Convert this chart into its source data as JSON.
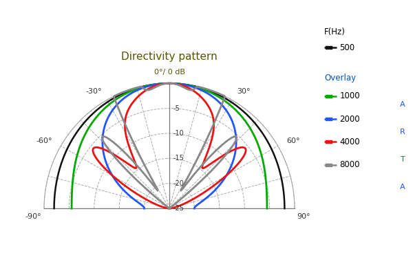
{
  "title": "Directivity pattern",
  "title_color": "#555500",
  "db_label": "0°/ 0 dB",
  "db_label_color": "#555500",
  "db_ticks": [
    -5,
    -10,
    -15,
    -20,
    -25
  ],
  "angle_labels": {
    "-90": "-90°",
    "-60": "-60°",
    "-30": "-30°",
    "30": "30°",
    "60": "60°",
    "90": "90°"
  },
  "legend_title1": "F(Hz)",
  "legend_title2": "Overlay",
  "legend_title2_color": "#0055cc",
  "series": {
    "500": {
      "color": "#111111",
      "lw": 1.8
    },
    "1000": {
      "color": "#00aa00",
      "lw": 2.0
    },
    "2000": {
      "color": "#2255ff",
      "lw": 2.0
    },
    "4000": {
      "color": "#ee1111",
      "lw": 2.0
    },
    "8000": {
      "color": "#888888",
      "lw": 2.0
    }
  },
  "background_color": "#ffffff",
  "grid_color": "#aaaaaa",
  "arta_color": "#2255ff",
  "db_min": -25,
  "db_max": 0
}
